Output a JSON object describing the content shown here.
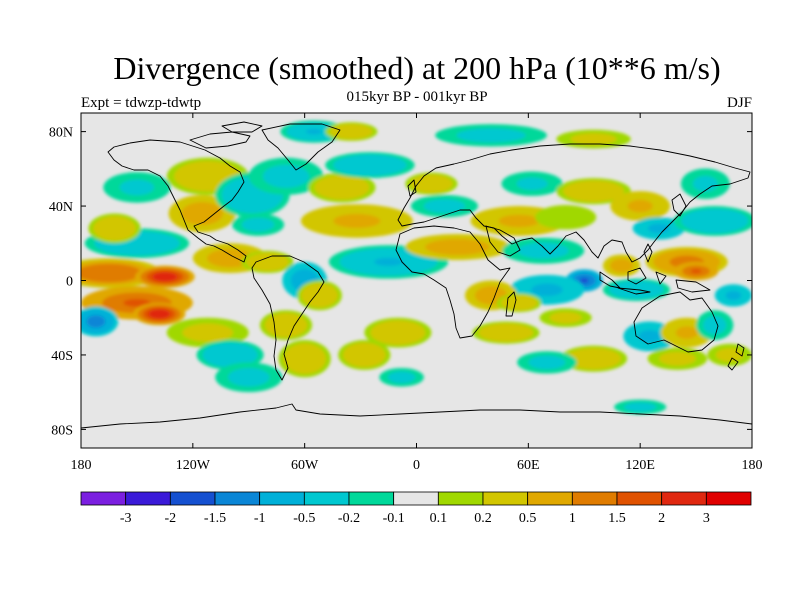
{
  "figure": {
    "title": "Divergence (smoothed) at 200 hPa (10**6 m/s)",
    "subtitle": "015kyr BP - 001kyr BP",
    "left_label": "Expt = tdwzp-tdwtp",
    "right_label": "DJF"
  },
  "map": {
    "projection": "cylindrical equidistant",
    "lon_range": [
      -180,
      180
    ],
    "lat_range": [
      -90,
      90
    ],
    "x_ticks": [
      {
        "lon": -180,
        "label": "180"
      },
      {
        "lon": -120,
        "label": "120W"
      },
      {
        "lon": -60,
        "label": "60W"
      },
      {
        "lon": 0,
        "label": "0"
      },
      {
        "lon": 60,
        "label": "60E"
      },
      {
        "lon": 120,
        "label": "120E"
      },
      {
        "lon": 180,
        "label": "180"
      }
    ],
    "y_ticks": [
      {
        "lat": 80,
        "label": "80N"
      },
      {
        "lat": 40,
        "label": "40N"
      },
      {
        "lat": 0,
        "label": "0"
      },
      {
        "lat": -40,
        "label": "40S"
      },
      {
        "lat": -80,
        "label": "80S"
      }
    ],
    "background_color": "#e6e6e6",
    "coastline_color": "#000000"
  },
  "colorbar": {
    "levels": [
      "-3",
      "-2",
      "-1.5",
      "-1",
      "-0.5",
      "-0.2",
      "-0.1",
      "0.1",
      "0.2",
      "0.5",
      "1",
      "1.5",
      "2",
      "3"
    ],
    "colors": [
      "#7b1fe0",
      "#3a1ad8",
      "#1550d0",
      "#0a86d6",
      "#00b0d8",
      "#00c8d0",
      "#00d89a",
      "#e6e6e6",
      "#a0d800",
      "#d2c600",
      "#e0a800",
      "#e07c00",
      "#e05200",
      "#e02810",
      "#e00000"
    ]
  },
  "chart_data": {
    "type": "heatmap",
    "variable": "Divergence (smoothed) at 200 hPa",
    "units": "10**6 m/s",
    "season": "DJF",
    "blobs": [
      {
        "lon": -165,
        "lat": 4,
        "rlon": 28,
        "rlat": 8,
        "v": 1.4
      },
      {
        "lon": -135,
        "lat": 2,
        "rlon": 16,
        "rlat": 6,
        "v": 2.5
      },
      {
        "lon": -150,
        "lat": -12,
        "rlon": 30,
        "rlat": 9,
        "v": 1.6
      },
      {
        "lon": -138,
        "lat": -18,
        "rlon": 14,
        "rlat": 6,
        "v": 2.3
      },
      {
        "lon": -172,
        "lat": -22,
        "rlon": 12,
        "rlat": 8,
        "v": -1.2
      },
      {
        "lon": -150,
        "lat": 20,
        "rlon": 28,
        "rlat": 8,
        "v": -0.4
      },
      {
        "lon": -162,
        "lat": 28,
        "rlon": 14,
        "rlat": 8,
        "v": 0.4
      },
      {
        "lon": -100,
        "lat": 12,
        "rlon": 20,
        "rlat": 8,
        "v": 0.7
      },
      {
        "lon": -80,
        "lat": 10,
        "rlon": 14,
        "rlat": 6,
        "v": 0.5
      },
      {
        "lon": -115,
        "lat": 36,
        "rlon": 18,
        "rlat": 10,
        "v": 0.8
      },
      {
        "lon": -112,
        "lat": 56,
        "rlon": 22,
        "rlat": 10,
        "v": 0.5
      },
      {
        "lon": -150,
        "lat": 50,
        "rlon": 22,
        "rlat": 10,
        "v": -0.25
      },
      {
        "lon": -88,
        "lat": 46,
        "rlon": 20,
        "rlat": 12,
        "v": -0.45
      },
      {
        "lon": -85,
        "lat": 30,
        "rlon": 14,
        "rlat": 6,
        "v": -0.3
      },
      {
        "lon": -70,
        "lat": 56,
        "rlon": 20,
        "rlat": 10,
        "v": -0.35
      },
      {
        "lon": -32,
        "lat": 32,
        "rlon": 30,
        "rlat": 9,
        "v": 0.6
      },
      {
        "lon": -40,
        "lat": 50,
        "rlon": 18,
        "rlat": 8,
        "v": 0.4
      },
      {
        "lon": -25,
        "lat": 62,
        "rlon": 24,
        "rlat": 7,
        "v": -0.4
      },
      {
        "lon": -15,
        "lat": 10,
        "rlon": 32,
        "rlat": 9,
        "v": -0.5
      },
      {
        "lon": -60,
        "lat": 0,
        "rlon": 12,
        "rlat": 10,
        "v": -0.8
      },
      {
        "lon": -52,
        "lat": -8,
        "rlon": 12,
        "rlat": 8,
        "v": 0.5
      },
      {
        "lon": -70,
        "lat": -24,
        "rlon": 14,
        "rlat": 8,
        "v": 0.4
      },
      {
        "lon": -112,
        "lat": -28,
        "rlon": 22,
        "rlat": 8,
        "v": 0.3
      },
      {
        "lon": -100,
        "lat": -40,
        "rlon": 18,
        "rlat": 8,
        "v": -0.45
      },
      {
        "lon": -90,
        "lat": -52,
        "rlon": 18,
        "rlat": 8,
        "v": -0.3
      },
      {
        "lon": -60,
        "lat": -42,
        "rlon": 14,
        "rlat": 10,
        "v": 0.5
      },
      {
        "lon": -28,
        "lat": -40,
        "rlon": 14,
        "rlat": 8,
        "v": 0.4
      },
      {
        "lon": -10,
        "lat": -28,
        "rlon": 18,
        "rlat": 8,
        "v": 0.5
      },
      {
        "lon": -8,
        "lat": -52,
        "rlon": 12,
        "rlat": 5,
        "v": -0.3
      },
      {
        "lon": -55,
        "lat": 80,
        "rlon": 18,
        "rlat": 6,
        "v": -0.5
      },
      {
        "lon": -35,
        "lat": 80,
        "rlon": 14,
        "rlat": 5,
        "v": 0.4
      },
      {
        "lon": 40,
        "lat": 78,
        "rlon": 30,
        "rlat": 6,
        "v": -0.3
      },
      {
        "lon": 95,
        "lat": 76,
        "rlon": 20,
        "rlat": 5,
        "v": 0.3
      },
      {
        "lon": 15,
        "lat": 40,
        "rlon": 18,
        "rlat": 6,
        "v": -0.3
      },
      {
        "lon": 8,
        "lat": 52,
        "rlon": 14,
        "rlat": 6,
        "v": 0.5
      },
      {
        "lon": 22,
        "lat": 18,
        "rlon": 28,
        "rlat": 7,
        "v": 0.7
      },
      {
        "lon": 55,
        "lat": 32,
        "rlon": 26,
        "rlat": 8,
        "v": 0.6
      },
      {
        "lon": 68,
        "lat": 16,
        "rlon": 22,
        "rlat": 7,
        "v": -0.3
      },
      {
        "lon": 80,
        "lat": 34,
        "rlon": 20,
        "rlat": 8,
        "v": 0.2
      },
      {
        "lon": 62,
        "lat": 52,
        "rlon": 20,
        "rlat": 8,
        "v": -0.25
      },
      {
        "lon": 95,
        "lat": 48,
        "rlon": 20,
        "rlat": 7,
        "v": 0.5
      },
      {
        "lon": 120,
        "lat": 40,
        "rlon": 16,
        "rlat": 8,
        "v": 0.6
      },
      {
        "lon": 130,
        "lat": 28,
        "rlon": 14,
        "rlat": 6,
        "v": -0.6
      },
      {
        "lon": 160,
        "lat": 32,
        "rlon": 22,
        "rlat": 8,
        "v": -0.4
      },
      {
        "lon": 155,
        "lat": 52,
        "rlon": 16,
        "rlat": 10,
        "v": -0.25
      },
      {
        "lon": 145,
        "lat": 10,
        "rlon": 22,
        "rlat": 8,
        "v": 1.3
      },
      {
        "lon": 150,
        "lat": 5,
        "rlon": 12,
        "rlat": 5,
        "v": 1.6
      },
      {
        "lon": 110,
        "lat": 8,
        "rlon": 10,
        "rlat": 6,
        "v": 0.7
      },
      {
        "lon": 170,
        "lat": -8,
        "rlon": 10,
        "rlat": 6,
        "v": -0.6
      },
      {
        "lon": 90,
        "lat": 0,
        "rlon": 10,
        "rlat": 6,
        "v": -1.6
      },
      {
        "lon": 70,
        "lat": -5,
        "rlon": 20,
        "rlat": 8,
        "v": -0.6
      },
      {
        "lon": 40,
        "lat": -8,
        "rlon": 14,
        "rlat": 8,
        "v": 0.9
      },
      {
        "lon": 55,
        "lat": -12,
        "rlon": 12,
        "rlat": 5,
        "v": 0.5
      },
      {
        "lon": 48,
        "lat": -28,
        "rlon": 18,
        "rlat": 6,
        "v": 0.4
      },
      {
        "lon": 80,
        "lat": -20,
        "rlon": 14,
        "rlat": 5,
        "v": 0.3
      },
      {
        "lon": 118,
        "lat": -5,
        "rlon": 18,
        "rlat": 6,
        "v": -0.45
      },
      {
        "lon": 125,
        "lat": -30,
        "rlon": 14,
        "rlat": 8,
        "v": -0.6
      },
      {
        "lon": 145,
        "lat": -28,
        "rlon": 14,
        "rlat": 8,
        "v": 0.6
      },
      {
        "lon": 160,
        "lat": -24,
        "rlon": 10,
        "rlat": 8,
        "v": -0.3
      },
      {
        "lon": 95,
        "lat": -42,
        "rlon": 18,
        "rlat": 7,
        "v": 0.4
      },
      {
        "lon": 70,
        "lat": -44,
        "rlon": 16,
        "rlat": 6,
        "v": -0.3
      },
      {
        "lon": 140,
        "lat": -42,
        "rlon": 16,
        "rlat": 6,
        "v": 0.3
      },
      {
        "lon": 168,
        "lat": -40,
        "rlon": 12,
        "rlat": 6,
        "v": 0.3
      },
      {
        "lon": 120,
        "lat": -68,
        "rlon": 14,
        "rlat": 4,
        "v": -0.3
      }
    ]
  }
}
